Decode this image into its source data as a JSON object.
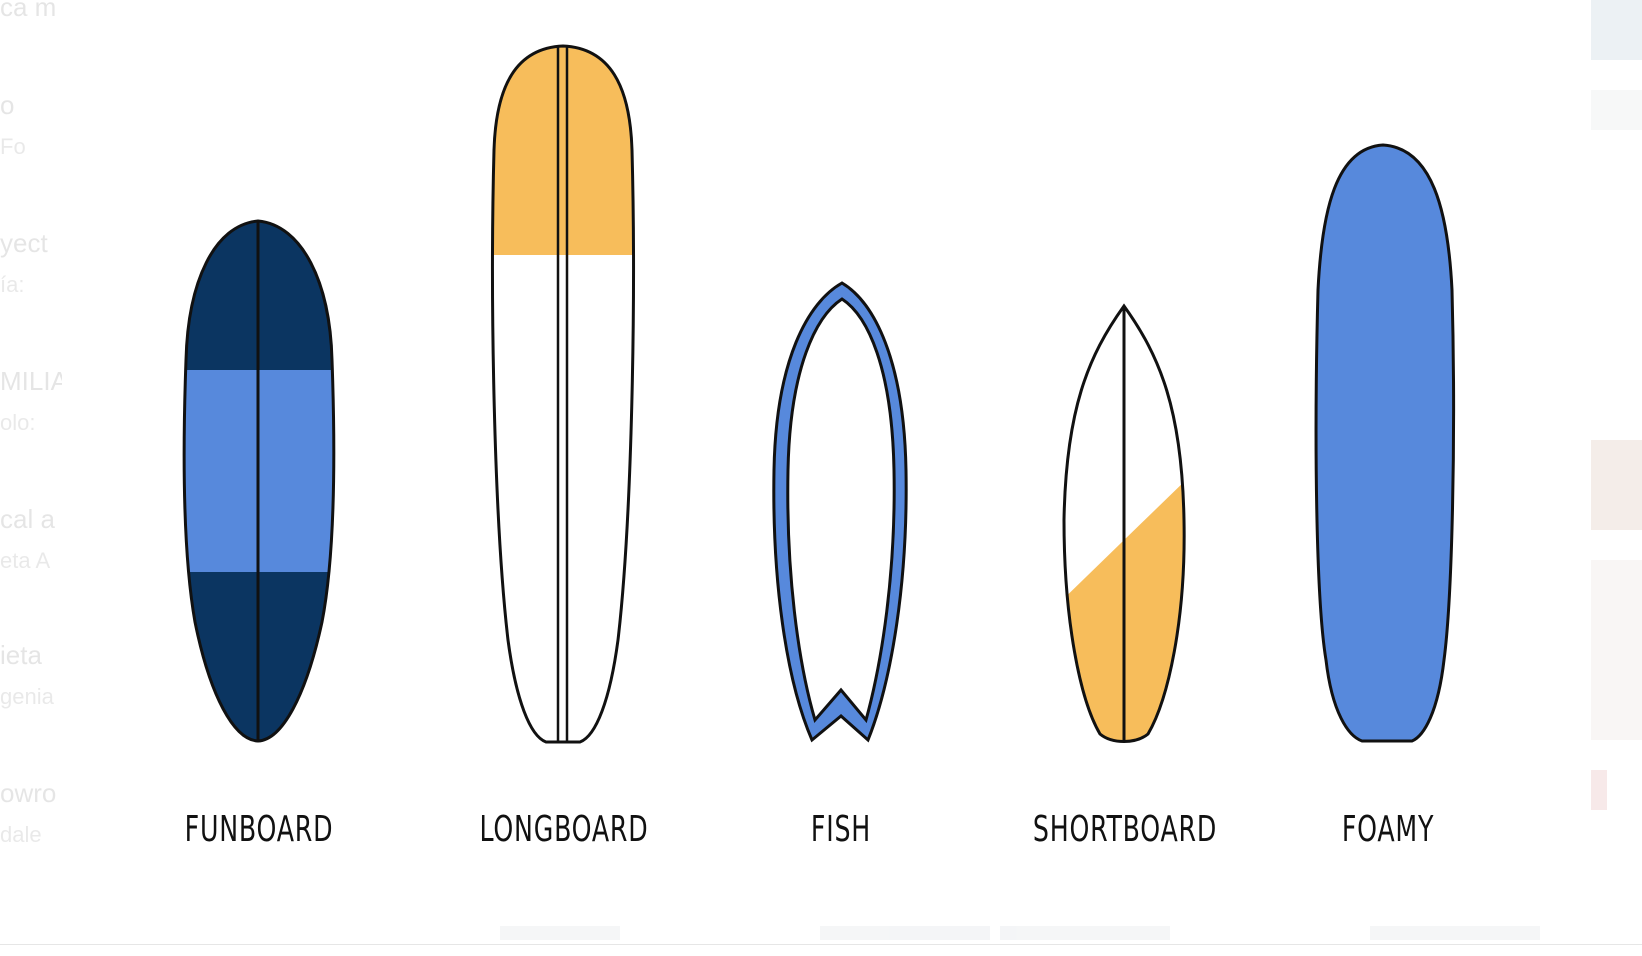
{
  "colors": {
    "navy": "#0b3561",
    "blue": "#5789dc",
    "yellow": "#f7bd5b",
    "outline": "#111111",
    "white": "#ffffff"
  },
  "boards": [
    {
      "id": "funboard",
      "label": "FUNBOARD"
    },
    {
      "id": "longboard",
      "label": "LONGBOARD"
    },
    {
      "id": "fish",
      "label": "FISH"
    },
    {
      "id": "shortboard",
      "label": "SHORTBOARD"
    },
    {
      "id": "foamy",
      "label": "FOAMY"
    }
  ],
  "background_ui": {
    "left_fragments": [
      "ca m",
      "o",
      "Fo",
      "yect",
      "ía:",
      "MILIA",
      "olo:",
      "cal a",
      "eta A",
      "ieta",
      "genia",
      "owro",
      "dale"
    ]
  }
}
